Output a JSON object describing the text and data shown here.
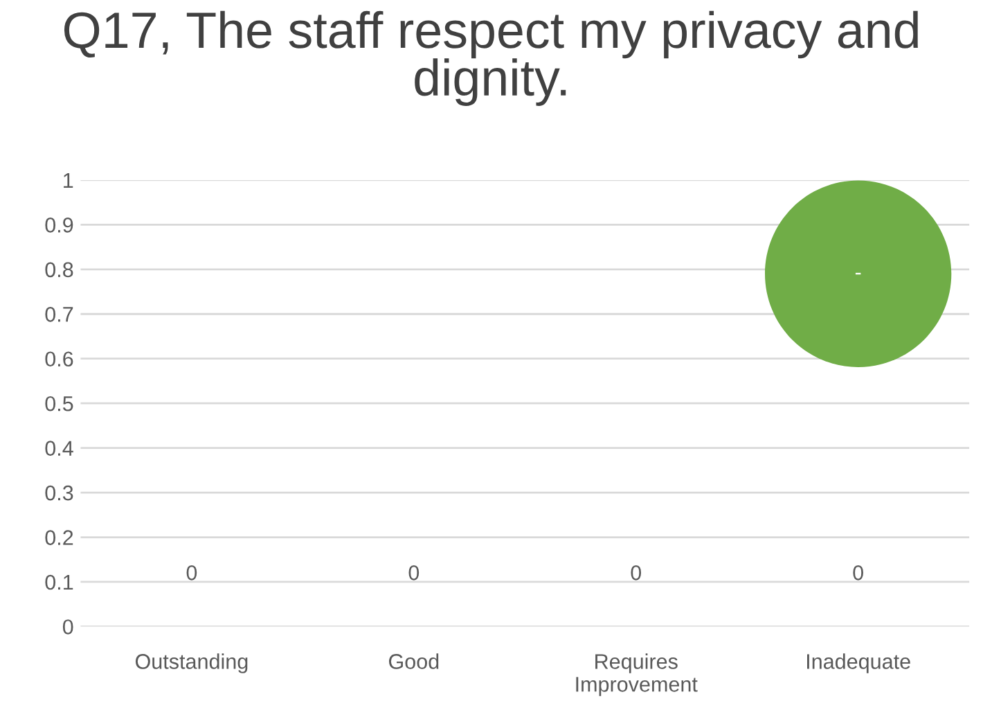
{
  "chart_data": {
    "type": "bubble",
    "title": "Q17, The staff respect my privacy and dignity.",
    "categories": [
      "Outstanding",
      "Good",
      "Requires\nImprovement",
      "Inadequate"
    ],
    "series": [
      {
        "color": "#70ad47",
        "values": [
          null,
          null,
          null,
          0.79
        ],
        "sizes": [
          null,
          null,
          null,
          1
        ],
        "value_labels": [
          null,
          null,
          null,
          "-"
        ]
      }
    ],
    "annotations": [
      "0",
      "0",
      "0",
      "0"
    ],
    "ylim": [
      0,
      1
    ],
    "yticks": [
      0,
      0.1,
      0.2,
      0.3,
      0.4,
      0.5,
      0.6,
      0.7,
      0.8,
      0.9,
      1
    ],
    "grid": "y",
    "legend": false
  }
}
